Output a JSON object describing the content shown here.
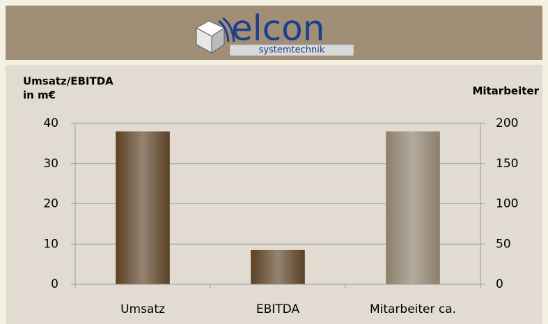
{
  "header": {
    "logo": "elcon",
    "tagline": "systemtechnik"
  },
  "chart_data": {
    "type": "bar",
    "y_label": [
      "Umsatz/EBITDA",
      "in m€"
    ],
    "y2_label": "Mitarbeiter",
    "categories": [
      "Umsatz",
      "EBITDA",
      "Mitarbeiter ca."
    ],
    "series": [
      {
        "color": "#5a4024",
        "values": [
          38,
          8.5,
          null
        ]
      },
      {
        "color": "#8c7e6a",
        "axis": "y2",
        "values": [
          null,
          null,
          190
        ]
      }
    ],
    "ylim": [
      0,
      40
    ],
    "yticks": [
      0,
      10,
      20,
      30,
      40
    ],
    "y2lim": [
      0,
      200
    ],
    "y2ticks": [
      0,
      50,
      100,
      150,
      200
    ],
    "grid": true
  }
}
